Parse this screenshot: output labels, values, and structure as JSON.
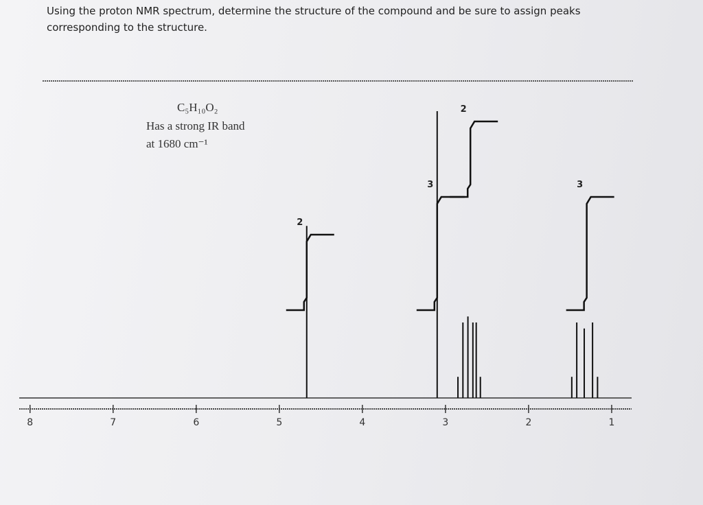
{
  "question": "Using the proton NMR spectrum, determine the structure of the compound and be sure to assign peaks corresponding to the structure.",
  "chart_data": {
    "type": "nmr",
    "formula": "C₅H₁₀O₂",
    "notes": [
      "Has a strong IR band",
      "at 1680 cm⁻¹"
    ],
    "xlim": [
      8.13,
      0.76
    ],
    "xticks": [
      8,
      7,
      6,
      5,
      4,
      3,
      2,
      1
    ],
    "ylim": [
      0,
      100
    ],
    "peaks": {
      "x": [
        4.67,
        3.1,
        2.85,
        2.79,
        2.73,
        2.67,
        2.63,
        2.58,
        1.48,
        1.42,
        1.33,
        1.23,
        1.17
      ],
      "values": [
        57,
        95,
        7,
        25,
        27,
        25,
        25,
        7,
        7,
        25,
        23,
        25,
        7
      ]
    },
    "integrals": {
      "x": [
        4.67,
        3.1,
        2.7,
        1.3
      ],
      "values": [
        2,
        3,
        2,
        3
      ]
    }
  }
}
